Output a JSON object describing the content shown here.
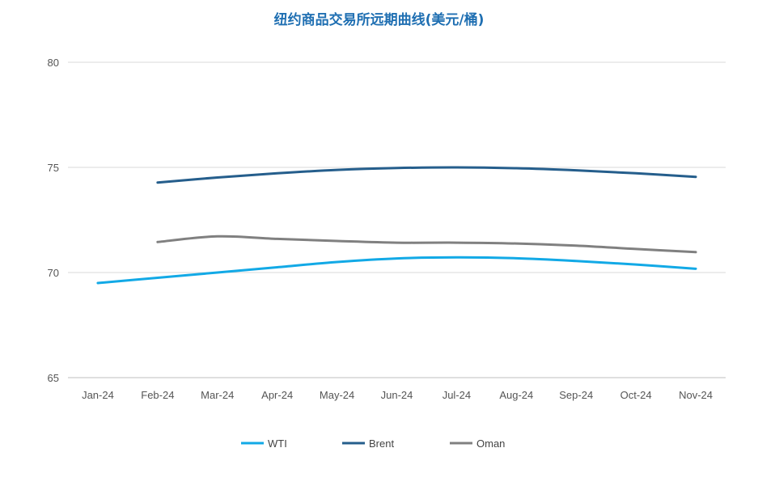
{
  "chart_data": {
    "type": "line",
    "title": "纽约商品交易所远期曲线(美元/桶)",
    "xlabel": "",
    "ylabel": "",
    "categories": [
      "Jan-24",
      "Feb-24",
      "Mar-24",
      "Apr-24",
      "May-24",
      "Jun-24",
      "Jul-24",
      "Aug-24",
      "Sep-24",
      "Oct-24",
      "Nov-24"
    ],
    "ylim": [
      65,
      80
    ],
    "yticks": [
      65,
      70,
      75,
      80
    ],
    "grid": true,
    "legend_position": "bottom",
    "series": [
      {
        "name": "WTI",
        "color": "#12a9e6",
        "values": [
          69.5,
          69.75,
          70.0,
          70.25,
          70.5,
          70.67,
          70.72,
          70.68,
          70.55,
          70.38,
          70.18
        ]
      },
      {
        "name": "Brent",
        "color": "#255e8c",
        "values": [
          null,
          74.28,
          74.52,
          74.72,
          74.88,
          74.97,
          75.0,
          74.96,
          74.86,
          74.72,
          74.55
        ]
      },
      {
        "name": "Oman",
        "color": "#808080",
        "values": [
          null,
          71.45,
          71.72,
          71.6,
          71.5,
          71.42,
          71.42,
          71.38,
          71.28,
          71.12,
          70.97
        ]
      }
    ]
  }
}
